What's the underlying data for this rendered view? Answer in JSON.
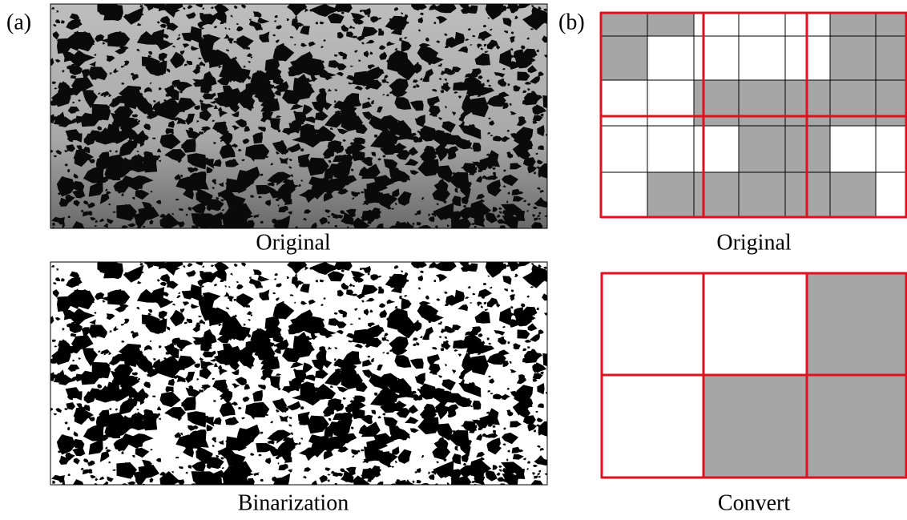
{
  "panel_a": {
    "label": "(a)",
    "top_caption": "Original",
    "bottom_caption": "Binarization"
  },
  "panel_b": {
    "label": "(b)",
    "top_caption": "Original",
    "bottom_caption": "Convert"
  }
}
